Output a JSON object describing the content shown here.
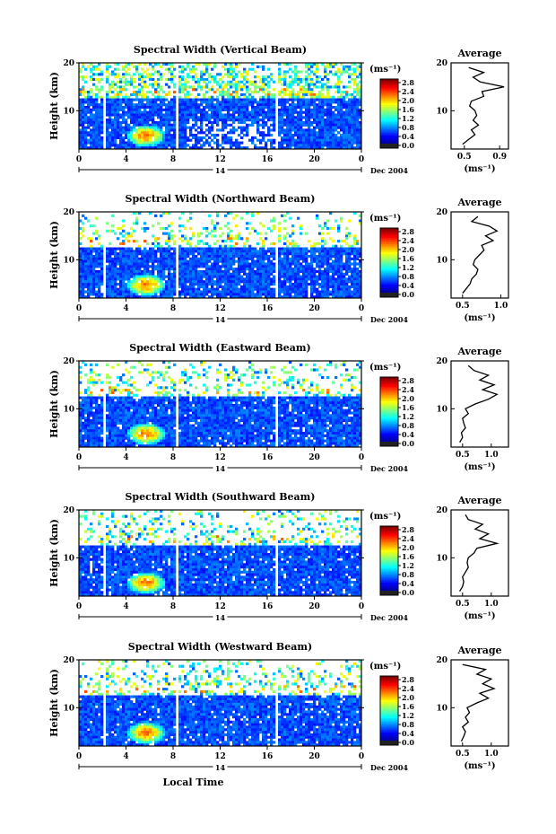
{
  "chart_data": [
    {
      "type": "heatmap",
      "title": "Spectral Width (Vertical Beam)",
      "ylabel": "Height (km)",
      "xlabel": "",
      "date_label": "Dec 2004",
      "day_label": "14",
      "xlim": [
        0,
        24
      ],
      "ylim": [
        2,
        20
      ],
      "x_ticks": [
        "0",
        "4",
        "8",
        "12",
        "16",
        "20",
        "0"
      ],
      "y_ticks": [
        "20",
        "10"
      ],
      "colorbar": {
        "unit": "(ms⁻¹)",
        "ticks": [
          "2.8",
          "2.4",
          "2.0",
          "1.6",
          "1.2",
          "0.8",
          "0.4",
          "0.0"
        ],
        "range": [
          0,
          2.8
        ]
      },
      "average": {
        "title": "Average",
        "xlabel": "(ms⁻¹)",
        "x_ticks": [
          "0.5",
          "0.9"
        ],
        "y_ticks": [
          "20",
          "10"
        ],
        "xlim": [
          0.35,
          1.0
        ],
        "height_km": [
          3,
          4,
          5,
          6,
          7,
          8,
          9,
          10,
          11,
          12,
          13,
          14,
          15,
          16,
          17,
          18,
          19
        ],
        "width": [
          0.48,
          0.55,
          0.62,
          0.58,
          0.66,
          0.6,
          0.64,
          0.62,
          0.56,
          0.58,
          0.72,
          0.7,
          0.95,
          0.68,
          0.6,
          0.72,
          0.55
        ]
      }
    },
    {
      "type": "heatmap",
      "title": "Spectral Width (Northward Beam)",
      "ylabel": "Height (km)",
      "xlabel": "",
      "date_label": "Dec 2004",
      "day_label": "14",
      "xlim": [
        0,
        24
      ],
      "ylim": [
        2,
        20
      ],
      "x_ticks": [
        "0",
        "4",
        "8",
        "12",
        "16",
        "20",
        "0"
      ],
      "y_ticks": [
        "20",
        "10"
      ],
      "colorbar": {
        "unit": "(ms⁻¹)",
        "ticks": [
          "2.8",
          "2.4",
          "2.0",
          "1.6",
          "1.2",
          "0.8",
          "0.4",
          "0.0"
        ],
        "range": [
          0,
          2.8
        ]
      },
      "average": {
        "title": "Average",
        "xlabel": "(ms⁻¹)",
        "x_ticks": [
          "0.5",
          "1.0"
        ],
        "y_ticks": [
          "20",
          "10"
        ],
        "xlim": [
          0.35,
          1.1
        ],
        "height_km": [
          3,
          4,
          5,
          6,
          7,
          8,
          9,
          10,
          11,
          12,
          13,
          14,
          15,
          16,
          17,
          18,
          19
        ],
        "width": [
          0.5,
          0.55,
          0.6,
          0.62,
          0.68,
          0.7,
          0.64,
          0.66,
          0.72,
          0.78,
          0.75,
          0.9,
          0.8,
          0.95,
          0.85,
          0.62,
          0.7
        ]
      }
    },
    {
      "type": "heatmap",
      "title": "Spectral Width (Eastward Beam)",
      "ylabel": "Height (km)",
      "xlabel": "",
      "date_label": "Dec 2004",
      "day_label": "14",
      "xlim": [
        0,
        24
      ],
      "ylim": [
        2,
        20
      ],
      "x_ticks": [
        "0",
        "4",
        "8",
        "12",
        "16",
        "20",
        "0"
      ],
      "y_ticks": [
        "20",
        "10"
      ],
      "colorbar": {
        "unit": "(ms⁻¹)",
        "ticks": [
          "2.8",
          "2.4",
          "2.0",
          "1.6",
          "1.2",
          "0.8",
          "0.4",
          "0.0"
        ],
        "range": [
          0,
          2.8
        ]
      },
      "average": {
        "title": "Average",
        "xlabel": "(ms⁻¹)",
        "x_ticks": [
          "0.5",
          "1.0"
        ],
        "y_ticks": [
          "20",
          "10"
        ],
        "xlim": [
          0.3,
          1.3
        ],
        "height_km": [
          3,
          4,
          5,
          6,
          7,
          8,
          9,
          10,
          11,
          12,
          13,
          14,
          15,
          16,
          17,
          18,
          19
        ],
        "width": [
          0.45,
          0.5,
          0.48,
          0.55,
          0.52,
          0.5,
          0.6,
          0.55,
          0.72,
          0.95,
          1.1,
          0.85,
          1.05,
          0.8,
          0.95,
          0.7,
          0.6
        ]
      }
    },
    {
      "type": "heatmap",
      "title": "Spectral Width (Southward Beam)",
      "ylabel": "Height (km)",
      "xlabel": "",
      "date_label": "Dec 2004",
      "day_label": "14",
      "xlim": [
        0,
        24
      ],
      "ylim": [
        2,
        20
      ],
      "x_ticks": [
        "0",
        "4",
        "8",
        "12",
        "16",
        "20",
        "0"
      ],
      "y_ticks": [
        "20",
        "10"
      ],
      "colorbar": {
        "unit": "(ms⁻¹)",
        "ticks": [
          "2.8",
          "2.4",
          "2.0",
          "1.6",
          "1.2",
          "0.8",
          "0.4",
          "0.0"
        ],
        "range": [
          0,
          2.8
        ]
      },
      "average": {
        "title": "Average",
        "xlabel": "(ms⁻¹)",
        "x_ticks": [
          "0.5",
          "1.0"
        ],
        "y_ticks": [
          "20",
          "10"
        ],
        "xlim": [
          0.3,
          1.3
        ],
        "height_km": [
          3,
          4,
          5,
          6,
          7,
          8,
          9,
          10,
          11,
          12,
          13,
          14,
          15,
          16,
          17,
          18,
          19
        ],
        "width": [
          0.45,
          0.5,
          0.52,
          0.5,
          0.55,
          0.6,
          0.58,
          0.6,
          0.7,
          0.75,
          1.1,
          0.8,
          0.95,
          0.72,
          0.85,
          0.6,
          0.55
        ]
      }
    },
    {
      "type": "heatmap",
      "title": "Spectral Width (Westward Beam)",
      "ylabel": "Height (km)",
      "xlabel": "Local Time",
      "date_label": "Dec 2004",
      "day_label": "14",
      "xlim": [
        0,
        24
      ],
      "ylim": [
        2,
        20
      ],
      "x_ticks": [
        "0",
        "4",
        "8",
        "12",
        "16",
        "20",
        "0"
      ],
      "y_ticks": [
        "20",
        "10"
      ],
      "colorbar": {
        "unit": "(ms⁻¹)",
        "ticks": [
          "2.8",
          "2.4",
          "2.0",
          "1.6",
          "1.2",
          "0.8",
          "0.4",
          "0.0"
        ],
        "range": [
          0,
          2.8
        ]
      },
      "average": {
        "title": "Average",
        "xlabel": "(ms⁻¹)",
        "x_ticks": [
          "0.5",
          "1.0"
        ],
        "y_ticks": [
          "20",
          "10"
        ],
        "xlim": [
          0.3,
          1.3
        ],
        "height_km": [
          3,
          4,
          5,
          6,
          7,
          8,
          9,
          10,
          11,
          12,
          13,
          14,
          15,
          16,
          17,
          18,
          19
        ],
        "width": [
          0.48,
          0.52,
          0.55,
          0.5,
          0.6,
          0.55,
          0.62,
          0.58,
          0.75,
          0.95,
          0.8,
          1.05,
          0.85,
          1.0,
          0.75,
          0.9,
          0.5
        ]
      }
    }
  ],
  "colors": {
    "jet": [
      "#00008f",
      "#0000ff",
      "#0080ff",
      "#00ffff",
      "#80ff80",
      "#ffff00",
      "#ff8000",
      "#ff0000",
      "#800000"
    ],
    "gap": "#ffffff",
    "profile_line": "#000000",
    "axis": "#000000"
  }
}
